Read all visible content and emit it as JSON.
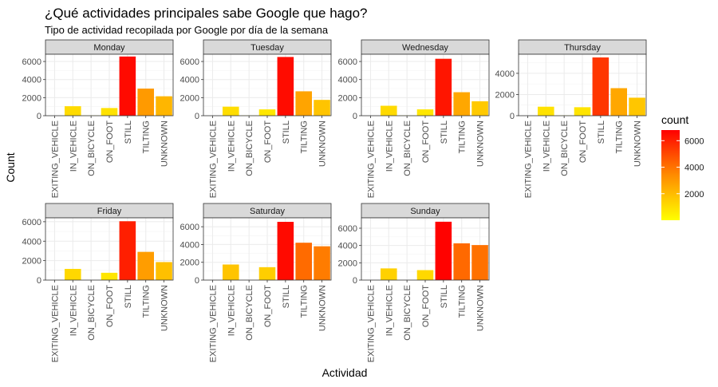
{
  "chart_data": {
    "type": "bar",
    "title": "¿Qué actividades principales sabe Google que hago?",
    "subtitle": "Tipo de actividad recopilada por Google por día de la semana",
    "xlabel": "Actividad",
    "ylabel": "Count",
    "categories": [
      "EXITING_VEHICLE",
      "IN_VEHICLE",
      "ON_BICYCLE",
      "ON_FOOT",
      "STILL",
      "TILTING",
      "UNKNOWN"
    ],
    "facet_scales": "free_y",
    "grid": true,
    "legend": {
      "title": "count",
      "placement": "right",
      "ticks": [
        2000,
        4000,
        6000
      ],
      "range": [
        0,
        6800
      ],
      "colors": {
        "low": "#FFFF00",
        "mid": "#FF8C00",
        "high": "#FF0000"
      }
    },
    "panels": [
      {
        "name": "Monday",
        "ylim": [
          0,
          6800
        ],
        "yticks": [
          0,
          2000,
          4000,
          6000
        ],
        "values": [
          0,
          1050,
          20,
          850,
          6550,
          3000,
          2150
        ]
      },
      {
        "name": "Tuesday",
        "ylim": [
          0,
          6800
        ],
        "yticks": [
          0,
          2000,
          4000,
          6000
        ],
        "values": [
          0,
          1000,
          20,
          700,
          6500,
          2700,
          1750
        ]
      },
      {
        "name": "Wednesday",
        "ylim": [
          0,
          6800
        ],
        "yticks": [
          0,
          2000,
          4000,
          6000
        ],
        "values": [
          0,
          1100,
          20,
          700,
          6300,
          2600,
          1600
        ]
      },
      {
        "name": "Thursday",
        "ylim": [
          0,
          5800
        ],
        "yticks": [
          0,
          2000,
          4000
        ],
        "values": [
          0,
          850,
          20,
          800,
          5500,
          2600,
          1700
        ]
      },
      {
        "name": "Friday",
        "ylim": [
          0,
          6400
        ],
        "yticks": [
          0,
          2000,
          4000,
          6000
        ],
        "values": [
          0,
          1150,
          0,
          750,
          6050,
          2900,
          1850
        ]
      },
      {
        "name": "Saturday",
        "ylim": [
          0,
          7000
        ],
        "yticks": [
          0,
          2000,
          4000,
          6000
        ],
        "values": [
          0,
          1750,
          0,
          1450,
          6550,
          4200,
          3800
        ]
      },
      {
        "name": "Sunday",
        "ylim": [
          0,
          7200
        ],
        "yticks": [
          0,
          2000,
          4000,
          6000
        ],
        "values": [
          0,
          1350,
          0,
          1150,
          6750,
          4250,
          4050
        ]
      }
    ]
  }
}
